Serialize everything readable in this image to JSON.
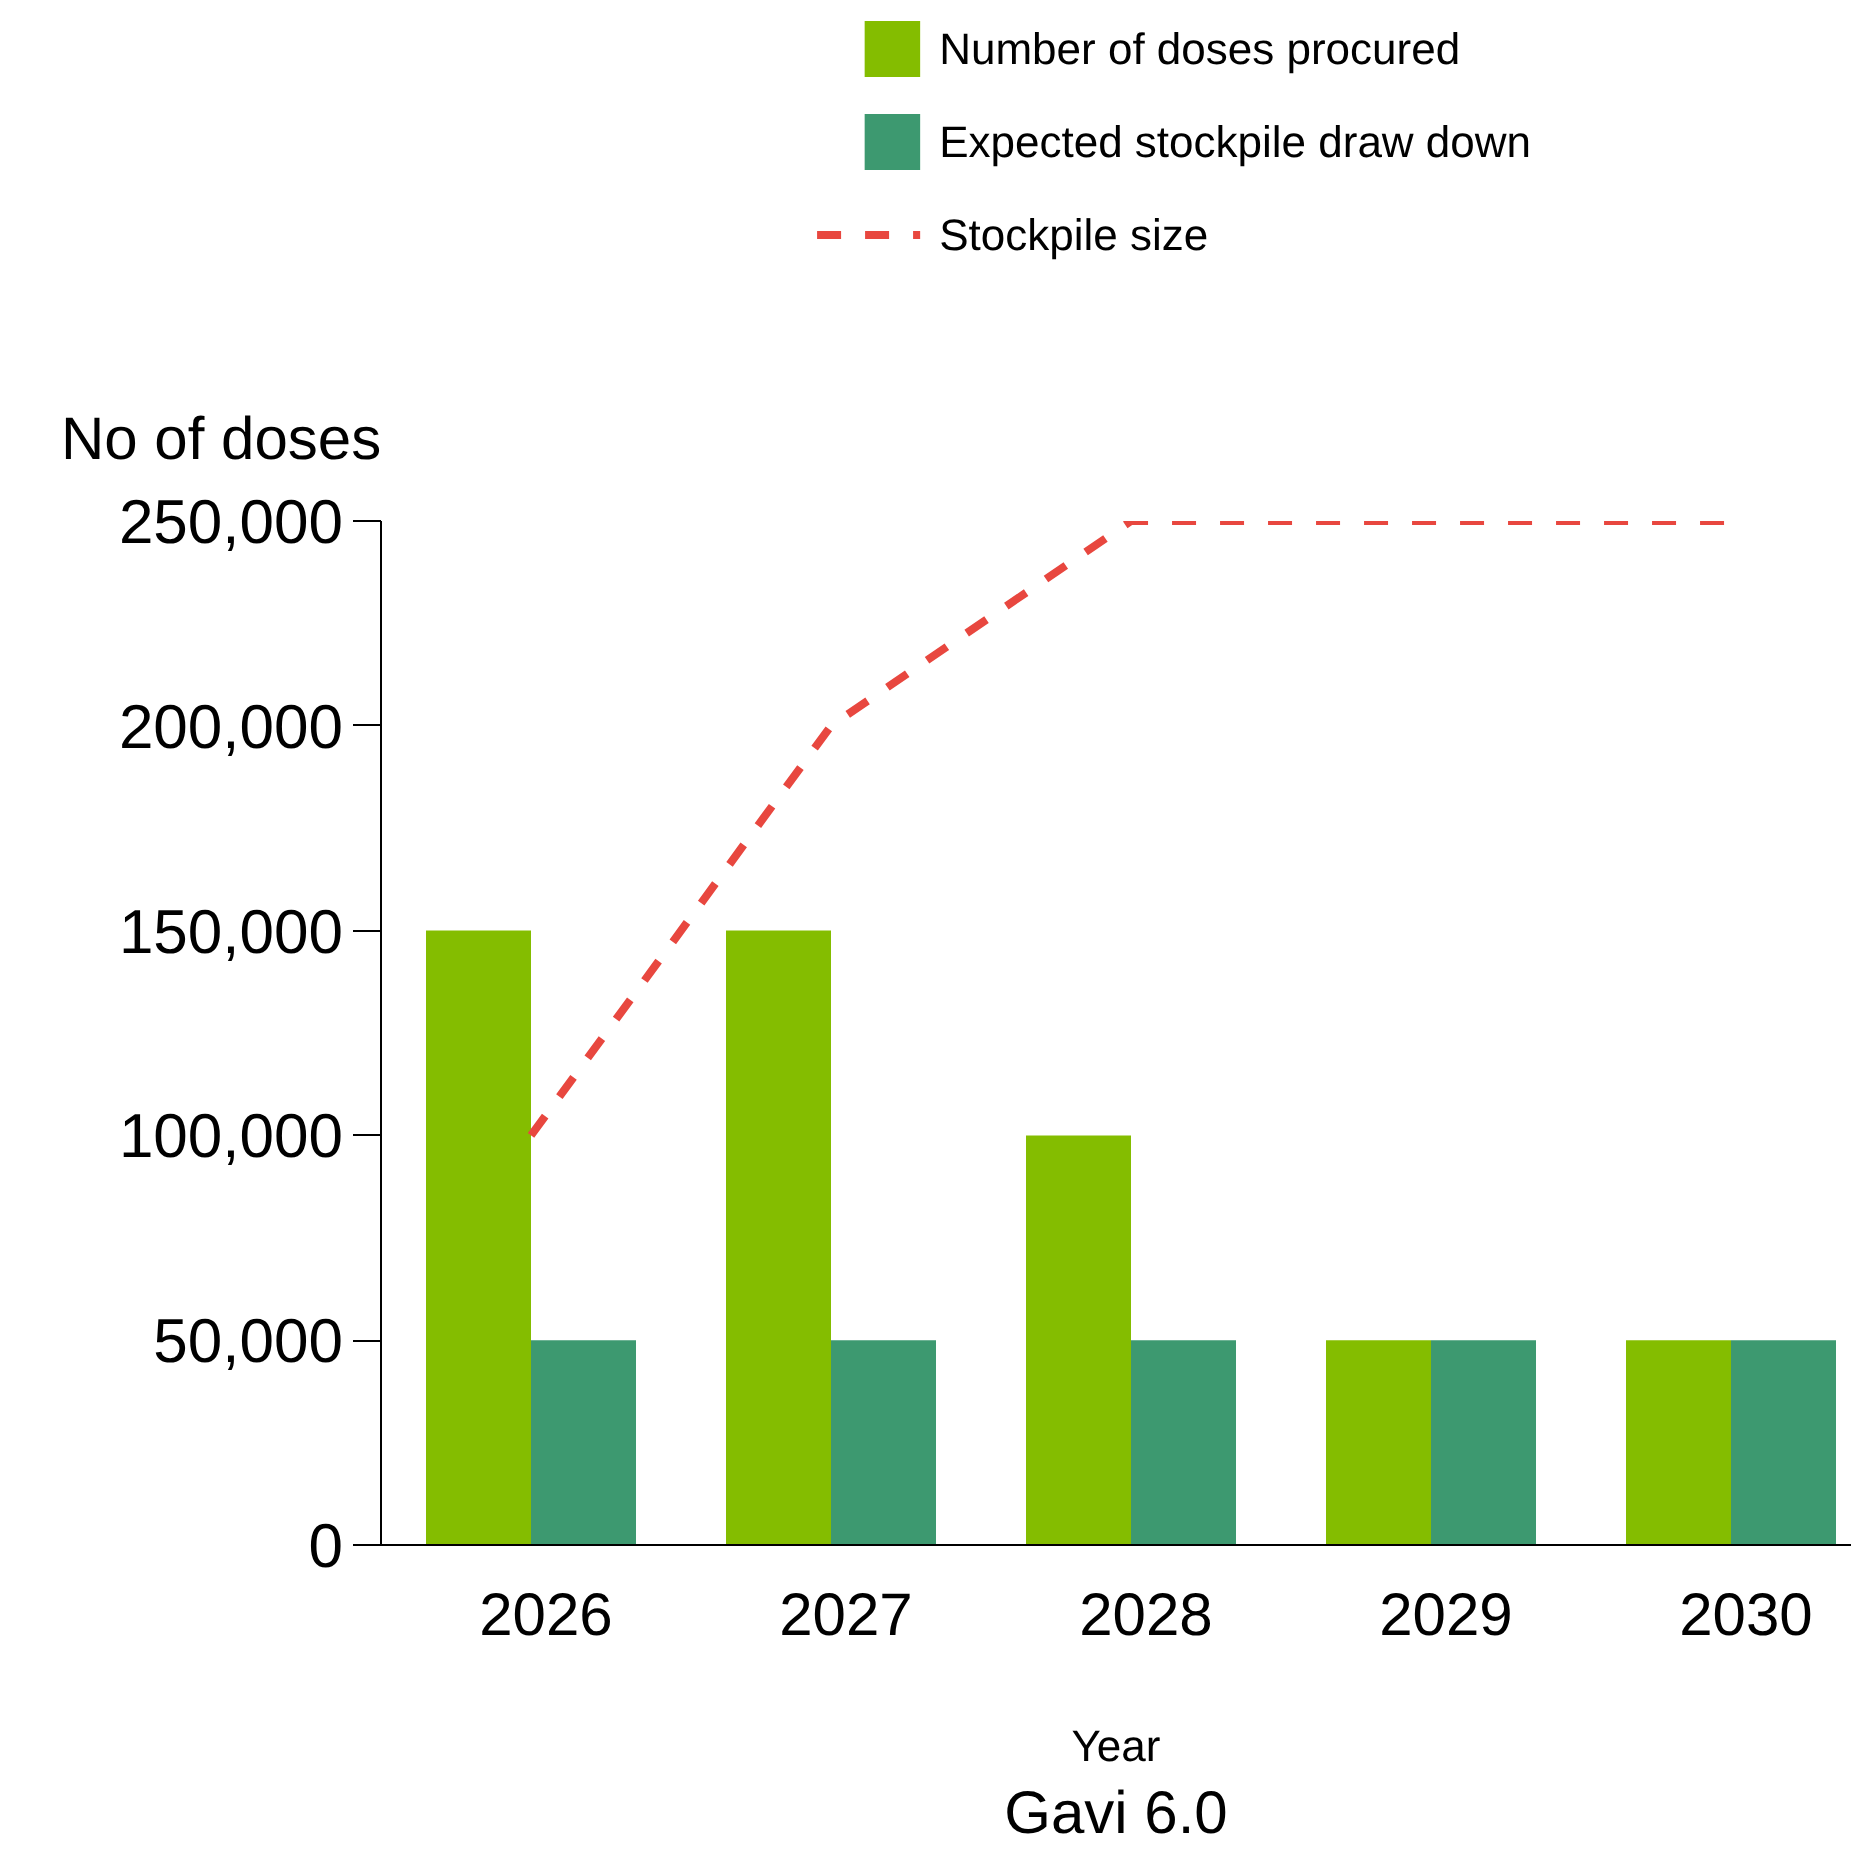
{
  "chart_data": {
    "type": "bar",
    "ylabel": "No of doses",
    "xlabel": "Year",
    "categories": [
      "2026",
      "2027",
      "2028",
      "2029",
      "2030"
    ],
    "series": [
      {
        "name": "Number of doses procured",
        "color": "#84bd00",
        "values": [
          150000,
          150000,
          100000,
          50000,
          50000
        ]
      },
      {
        "name": "Expected stockpile draw down",
        "color": "#3d9970",
        "values": [
          50000,
          50000,
          50000,
          50000,
          50000
        ]
      },
      {
        "name": "Stockpile size",
        "type": "line",
        "line_style": "dashed",
        "color": "#e8473f",
        "values": [
          100000,
          200000,
          250000,
          250000,
          250000
        ]
      }
    ],
    "ylim": [
      0,
      250000
    ],
    "yticks": [
      {
        "value": 0,
        "label": "0"
      },
      {
        "value": 50000,
        "label": "50,000"
      },
      {
        "value": 100000,
        "label": "100,000"
      },
      {
        "value": 150000,
        "label": "150,000"
      },
      {
        "value": 200000,
        "label": "200,000"
      },
      {
        "value": 250000,
        "label": "250,000"
      }
    ],
    "grid": false,
    "legend": "top",
    "annotations": [
      "Gavi 6.0"
    ]
  }
}
